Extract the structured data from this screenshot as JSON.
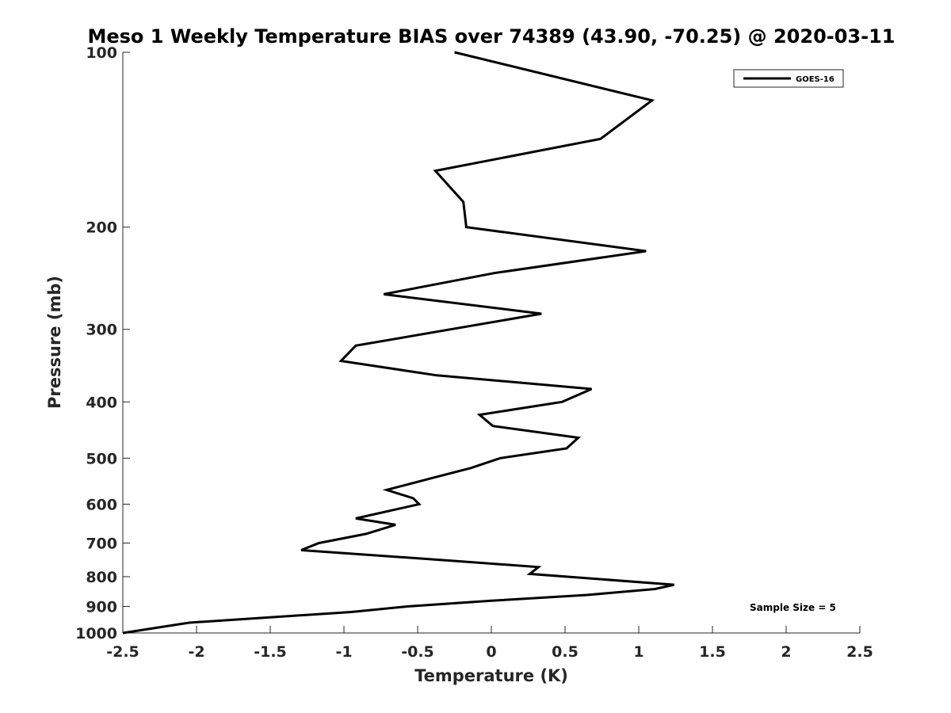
{
  "chart_data": {
    "type": "line",
    "title": "Meso 1 Weekly Temperature BIAS over 74389 (43.90, -70.25) @ 2020-03-11",
    "xlabel": "Temperature (K)",
    "ylabel": "Pressure (mb)",
    "xlim": [
      -2.5,
      2.5
    ],
    "ylim": [
      1000,
      100
    ],
    "y_scale": "log",
    "y_reversed": true,
    "x_ticks": [
      "-2.5",
      "-2",
      "-1.5",
      "-1",
      "-0.5",
      "0",
      "0.5",
      "1",
      "1.5",
      "2",
      "2.5"
    ],
    "y_ticks": [
      "100",
      "200",
      "300",
      "400",
      "500",
      "600",
      "700",
      "800",
      "900",
      "1000"
    ],
    "grid": false,
    "legend_position": "top-right",
    "annotation": "Sample Size = 5",
    "series": [
      {
        "name": "GOES-16",
        "color": "#000000",
        "x": [
          -0.25,
          1.09,
          0.74,
          -0.38,
          -0.19,
          -0.17,
          1.05,
          0.02,
          -0.73,
          0.34,
          -0.92,
          -1.02,
          -0.37,
          0.68,
          0.48,
          -0.08,
          0.01,
          0.59,
          0.51,
          0.06,
          -0.14,
          -0.39,
          -0.71,
          -0.53,
          -0.49,
          -0.92,
          -0.65,
          -0.85,
          -1.17,
          -1.29,
          -0.3,
          0.32,
          0.26,
          1.24,
          1.11,
          0.65,
          0.0,
          -0.57,
          -0.95,
          -2.05,
          -2.5
        ],
        "y": [
          100,
          121,
          141,
          160,
          181,
          200,
          220,
          240,
          261,
          282,
          320,
          340,
          360,
          380,
          400,
          421,
          440,
          461,
          481,
          500,
          520,
          540,
          567,
          586,
          600,
          635,
          651,
          675,
          700,
          720,
          750,
          770,
          791,
          826,
          840,
          860,
          880,
          900,
          920,
          960,
          1000
        ]
      }
    ]
  }
}
